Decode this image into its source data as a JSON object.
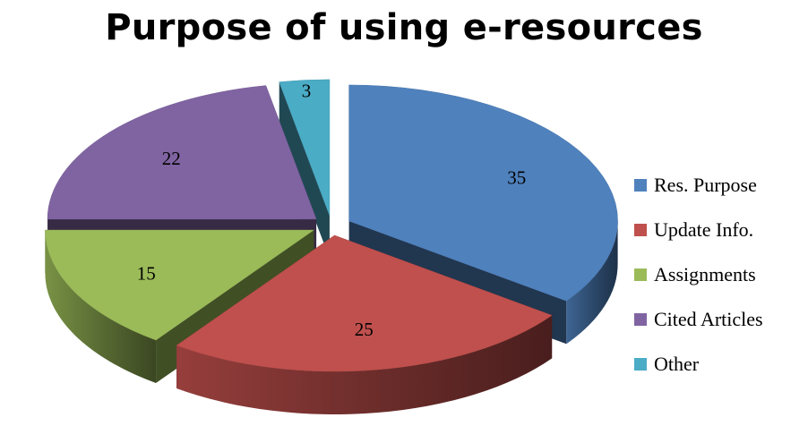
{
  "chart_data": {
    "type": "pie",
    "title": "Purpose of using e-resources",
    "categories": [
      "Res. Purpose",
      "Update Info.",
      "Assignments",
      "Cited Articles",
      "Other"
    ],
    "values": [
      35,
      25,
      15,
      22,
      3
    ],
    "colors": [
      "#4F81BD",
      "#C0504D",
      "#9BBB59",
      "#8064A2",
      "#4BACC6"
    ],
    "style": "3d-exploded",
    "legend_position": "right"
  }
}
